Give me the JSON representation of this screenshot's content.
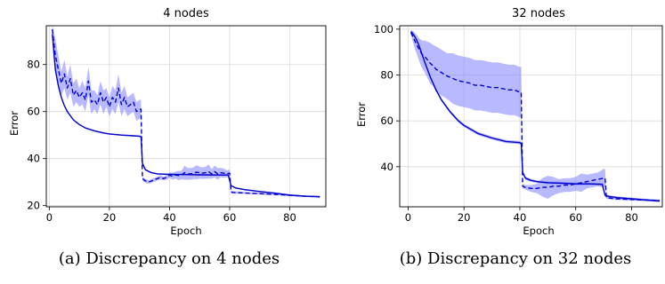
{
  "captions": [
    "(a) Discrepancy on 4 nodes",
    "(b) Discrepancy on 32 nodes"
  ],
  "colors": {
    "line": "#0000cc",
    "band": "#8080ff",
    "grid": "#d9d9d9"
  },
  "chart_data": [
    {
      "type": "line",
      "title": "4 nodes",
      "xlabel": "Epoch",
      "ylabel": "Error",
      "xlim": [
        -1,
        92
      ],
      "ylim": [
        19.5,
        96.5
      ],
      "xticks": [
        0,
        20,
        40,
        60,
        80
      ],
      "yticks": [
        20,
        40,
        60,
        80
      ],
      "grid": true,
      "series": [
        {
          "style": "solid",
          "x": [
            1,
            2,
            3,
            4,
            5,
            6,
            8,
            10,
            12,
            15,
            18,
            20,
            24,
            28,
            30,
            30.5,
            31,
            32,
            34,
            36,
            40,
            45,
            50,
            55,
            59.5,
            60.5,
            62,
            65,
            70,
            75,
            80,
            85,
            90
          ],
          "y": [
            93,
            78,
            71,
            66,
            62.5,
            60,
            56.5,
            54.5,
            53,
            51.8,
            50.9,
            50.5,
            50,
            49.7,
            49.5,
            49.4,
            38,
            35.2,
            34,
            33.5,
            33.3,
            33.2,
            33.1,
            33,
            33,
            28.5,
            27.5,
            26.8,
            26,
            25.3,
            24.5,
            24,
            23.8
          ],
          "band": [
            0.4,
            0.3,
            0.3,
            0.3,
            0.3,
            0.3,
            0.3,
            0.3,
            0.3,
            0.3,
            0.3,
            0.3,
            0.3,
            0.3,
            0.3,
            0.3,
            0.4,
            0.4,
            0.3,
            0.3,
            0.3,
            0.3,
            0.3,
            0.3,
            0.3,
            0.3,
            0.3,
            0.3,
            0.3,
            0.3,
            0.3,
            0.3,
            0.3
          ]
        },
        {
          "style": "dashed",
          "x": [
            1,
            2,
            3,
            4,
            5,
            6,
            7,
            8,
            9,
            10,
            11,
            12,
            13,
            14,
            15,
            16,
            17,
            18,
            19,
            20,
            21,
            22,
            23,
            24,
            25,
            26,
            27,
            28,
            29,
            30,
            30.5,
            31,
            32,
            33,
            34,
            35,
            36,
            37,
            38,
            39,
            40,
            41,
            42,
            43,
            44,
            45,
            46,
            47,
            48,
            49,
            50,
            51,
            52,
            53,
            54,
            55,
            56,
            57,
            58,
            59,
            60,
            60.5,
            61,
            63,
            66,
            70,
            75,
            80,
            85,
            88,
            90
          ],
          "y": [
            95,
            84,
            78,
            72,
            76,
            70,
            74,
            67,
            69,
            66,
            68,
            65,
            73,
            64,
            65,
            63,
            68,
            64,
            66,
            62,
            66,
            64,
            70,
            63,
            66,
            62,
            63,
            64,
            60,
            61,
            61,
            31.5,
            30.5,
            30,
            30.5,
            31,
            31.5,
            32,
            31.5,
            32,
            33,
            32.5,
            33,
            32.8,
            33,
            34,
            33.5,
            33.5,
            33.8,
            34.2,
            34,
            33.8,
            34,
            34.5,
            33.5,
            34.5,
            33.5,
            34,
            33.8,
            33.5,
            33.8,
            25.8,
            25.6,
            25.5,
            25.3,
            25.1,
            24.8,
            24.4,
            24,
            23.8,
            23.7
          ],
          "band": [
            2,
            7,
            6,
            5,
            6,
            5,
            6,
            5,
            5,
            4,
            5,
            5,
            6,
            5,
            4,
            4,
            5,
            5,
            4,
            4,
            5,
            5,
            6,
            5,
            5,
            4,
            4,
            4,
            4,
            4,
            4,
            0.8,
            0.8,
            0.8,
            0.8,
            0.8,
            0.8,
            1.0,
            0.8,
            1.0,
            1.2,
            1.5,
            1.5,
            2.0,
            1.8,
            3.0,
            2.5,
            2.5,
            2.5,
            3.0,
            2.5,
            2.5,
            2.5,
            3.0,
            2.0,
            2.5,
            2.5,
            2.0,
            2.0,
            1.5,
            1.5,
            0.6,
            0.5,
            0.5,
            0.4,
            0.4,
            0.4,
            0.4,
            0.3,
            0.3,
            0.3
          ]
        }
      ]
    },
    {
      "type": "line",
      "title": "32 nodes",
      "xlabel": "Epoch",
      "ylabel": "Error",
      "xlim": [
        -3,
        91
      ],
      "ylim": [
        22.5,
        101.5
      ],
      "xticks": [
        0,
        20,
        40,
        60,
        80
      ],
      "yticks": [
        40,
        60,
        80,
        100
      ],
      "grid": true,
      "series": [
        {
          "style": "solid",
          "x": [
            1,
            2,
            3,
            4,
            5,
            6,
            8,
            10,
            12,
            15,
            18,
            20,
            25,
            30,
            35,
            40,
            40.5,
            41,
            42,
            44,
            46,
            50,
            55,
            60,
            65,
            69.5,
            70.5,
            72,
            75,
            80,
            85,
            90
          ],
          "y": [
            99,
            97.5,
            95.5,
            92.5,
            89,
            85.5,
            79,
            73.5,
            69,
            64,
            60,
            58,
            54.5,
            52.5,
            51,
            50.5,
            50.2,
            37.5,
            35,
            34,
            33.5,
            33,
            32.8,
            32.5,
            32.5,
            32.3,
            27.5,
            27,
            26.5,
            26,
            25.5,
            25
          ],
          "band": [
            0.5,
            0.5,
            0.5,
            0.5,
            0.5,
            0.6,
            0.7,
            0.7,
            0.7,
            0.7,
            0.7,
            0.7,
            0.7,
            0.7,
            0.7,
            0.7,
            0.7,
            0.8,
            0.8,
            0.6,
            0.6,
            0.6,
            0.6,
            0.6,
            0.6,
            0.6,
            0.5,
            0.5,
            0.5,
            0.5,
            0.5,
            0.5
          ]
        },
        {
          "style": "dashed",
          "x": [
            1,
            2,
            3,
            4,
            5,
            6,
            7,
            8,
            9,
            10,
            12,
            14,
            16,
            18,
            20,
            22,
            24,
            26,
            28,
            30,
            32,
            34,
            36,
            38,
            40,
            40.5,
            41,
            42,
            44,
            46,
            48,
            50,
            52,
            54,
            56,
            58,
            60,
            62,
            64,
            66,
            68,
            70,
            70.5,
            71,
            74,
            78,
            82,
            86,
            90
          ],
          "y": [
            98.5,
            96,
            93.5,
            91,
            89,
            88,
            86.5,
            85,
            84,
            82.5,
            81,
            79.5,
            78.5,
            77.5,
            77,
            76.5,
            75.5,
            75.5,
            75,
            74.5,
            74.5,
            74,
            73.5,
            73.5,
            72.5,
            72.5,
            31.5,
            31,
            30.5,
            30.5,
            31,
            31,
            31.5,
            31.5,
            32,
            32,
            32.5,
            33,
            33.5,
            34,
            34.5,
            35,
            35,
            26.5,
            26,
            25.8,
            25.6,
            25.4,
            25.2
          ],
          "band": [
            1,
            3,
            4,
            5,
            6,
            7,
            8,
            9,
            9,
            10,
            10,
            10,
            11,
            11,
            11,
            11,
            11,
            11,
            11,
            11,
            11,
            11,
            11,
            11,
            11,
            11,
            1.0,
            1.0,
            1.5,
            2,
            4,
            5,
            4,
            3,
            3,
            3,
            3,
            4,
            3,
            3,
            3,
            4,
            4,
            0.5,
            0.5,
            0.5,
            0.5,
            0.5,
            0.5
          ]
        }
      ]
    }
  ]
}
